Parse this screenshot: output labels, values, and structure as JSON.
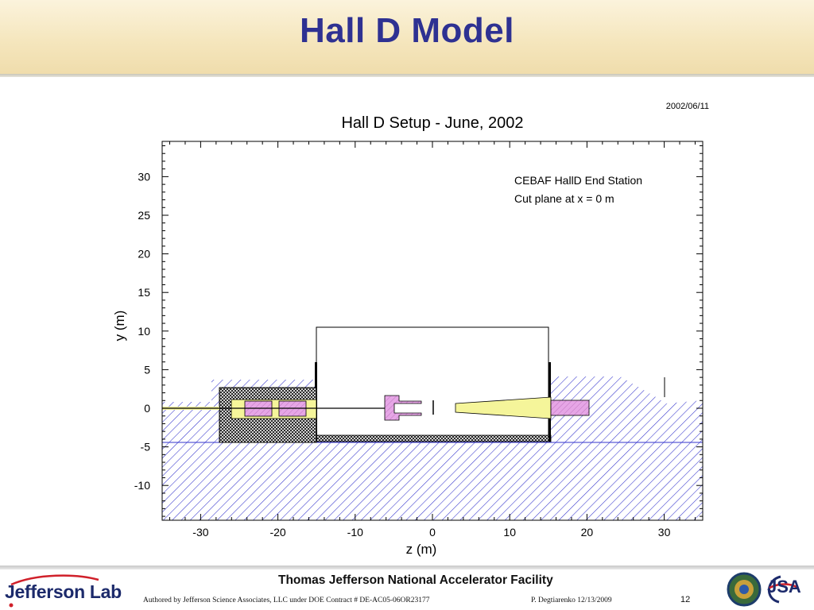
{
  "slide": {
    "title": "Hall D Model"
  },
  "figure": {
    "date_stamp": "2002/06/11",
    "title": "Hall D Setup - June, 2002",
    "annotation_line1": "CEBAF HallD End Station",
    "annotation_line2": "Cut plane at x = 0 m",
    "x_label": "z (m)",
    "y_label": "y (m)",
    "x_ticks": [
      "-30",
      "-20",
      "-10",
      "0",
      "10",
      "20",
      "30"
    ],
    "y_ticks": [
      "30",
      "25",
      "20",
      "15",
      "10",
      "5",
      "0",
      "-5",
      "-10"
    ],
    "colors": {
      "hatch": "#3333cc",
      "yellow": "#f5f59a",
      "pink": "#e6a6e6",
      "frame": "#000000"
    }
  },
  "footer": {
    "org_name": "Thomas Jefferson National Accelerator Facility",
    "logo_left_text": "Jefferson Lab",
    "authored_note": "Authored by Jefferson Science Associates, LLC under DOE Contract #  DE-AC05-06OR23177",
    "author_date": "P. Degtiarenko 12/13/2009",
    "page_number": "12",
    "logo_right_text": "JSA"
  }
}
